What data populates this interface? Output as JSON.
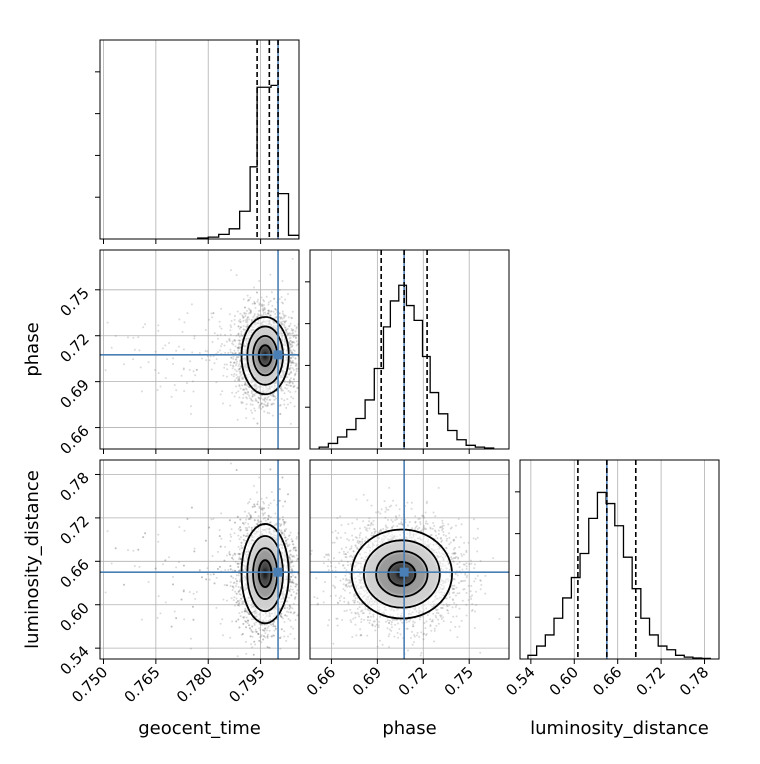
{
  "chart_data": {
    "type": "corner",
    "parameters": [
      "geocent_time",
      "phase",
      "luminosity_distance"
    ],
    "truths": {
      "geocent_time": 0.8,
      "phase": 0.7075,
      "luminosity_distance": 0.645
    },
    "colors": {
      "truth": "#4a7fb5",
      "hist": "#000000",
      "grid": "#b0b0b0",
      "quantile": "#000000"
    },
    "grid": true,
    "axes": {
      "geocent_time": {
        "label": "geocent_time",
        "range": [
          0.749,
          0.806
        ],
        "ticks": [
          0.75,
          0.765,
          0.78,
          0.795
        ],
        "tick_labels": [
          "0.750",
          "0.765",
          "0.780",
          "0.795"
        ]
      },
      "phase": {
        "label": "phase",
        "range": [
          0.646,
          0.776
        ],
        "ticks": [
          0.66,
          0.69,
          0.72,
          0.75
        ],
        "tick_labels": [
          "0.66",
          "0.69",
          "0.72",
          "0.75"
        ]
      },
      "luminosity_distance": {
        "label": "luminosity_distance",
        "range": [
          0.525,
          0.8
        ],
        "ticks": [
          0.54,
          0.6,
          0.66,
          0.72,
          0.78
        ],
        "tick_labels": [
          "0.54",
          "0.60",
          "0.66",
          "0.72",
          "0.78"
        ]
      }
    },
    "marginals": {
      "geocent_time": {
        "edges": [
          0.777,
          0.78,
          0.783,
          0.786,
          0.789,
          0.792,
          0.794,
          0.796,
          0.798,
          0.8,
          0.803,
          0.806
        ],
        "counts": [
          0.005,
          0.01,
          0.025,
          0.055,
          0.15,
          0.39,
          0.82,
          0.82,
          0.83,
          0.245,
          0.02
        ],
        "quantiles": [
          0.794,
          0.7975,
          0.8
        ]
      },
      "phase": {
        "edges": [
          0.652,
          0.658,
          0.664,
          0.67,
          0.676,
          0.682,
          0.688,
          0.694,
          0.6985,
          0.704,
          0.709,
          0.714,
          0.7195,
          0.7245,
          0.73,
          0.736,
          0.742,
          0.748,
          0.754,
          0.76,
          0.766
        ],
        "counts": [
          0.01,
          0.03,
          0.065,
          0.105,
          0.165,
          0.265,
          0.435,
          0.66,
          0.8,
          0.885,
          0.775,
          0.695,
          0.5,
          0.305,
          0.19,
          0.1,
          0.05,
          0.02,
          0.01,
          0.005
        ],
        "quantiles": [
          0.6925,
          0.7075,
          0.7225
        ]
      },
      "luminosity_distance": {
        "edges": [
          0.536,
          0.548,
          0.56,
          0.572,
          0.584,
          0.596,
          0.608,
          0.62,
          0.632,
          0.644,
          0.656,
          0.668,
          0.68,
          0.692,
          0.704,
          0.716,
          0.728,
          0.74,
          0.752,
          0.764,
          0.776,
          0.788
        ],
        "counts": [
          0.02,
          0.07,
          0.13,
          0.22,
          0.33,
          0.44,
          0.57,
          0.76,
          0.9,
          0.84,
          0.72,
          0.55,
          0.38,
          0.22,
          0.13,
          0.07,
          0.05,
          0.02,
          0.01,
          0.005,
          0.003
        ],
        "quantiles": [
          0.605,
          0.645,
          0.685
        ]
      }
    },
    "joint": [
      {
        "x": "geocent_time",
        "y": "phase",
        "center": [
          0.7963,
          0.707
        ],
        "sigma": [
          0.0033,
          0.0123
        ],
        "tail_x": "left"
      },
      {
        "x": "geocent_time",
        "y": "luminosity_distance",
        "center": [
          0.7963,
          0.643
        ],
        "sigma": [
          0.0033,
          0.0335
        ],
        "tail_x": "left"
      },
      {
        "x": "phase",
        "y": "luminosity_distance",
        "center": [
          0.706,
          0.6425
        ],
        "sigma": [
          0.016,
          0.03
        ],
        "tail_x": "none"
      }
    ]
  }
}
